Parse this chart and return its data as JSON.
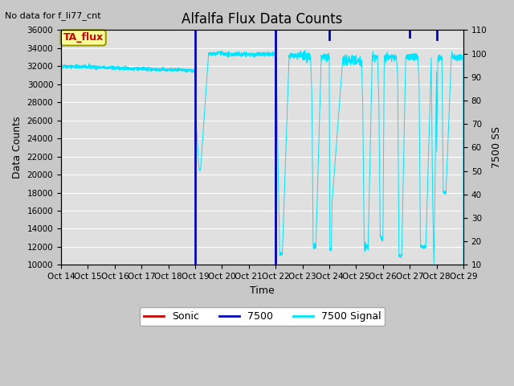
{
  "title": "Alfalfa Flux Data Counts",
  "topleft_text": "No data for f_li77_cnt",
  "legend_box_label": "TA_flux",
  "xlabel": "Time",
  "ylabel_left": "Data Counts",
  "ylabel_right": "7500 SS",
  "ylim_left": [
    10000,
    36000
  ],
  "ylim_right": [
    10,
    110
  ],
  "yticks_left": [
    10000,
    12000,
    14000,
    16000,
    18000,
    20000,
    22000,
    24000,
    26000,
    28000,
    30000,
    32000,
    34000,
    36000
  ],
  "yticks_right": [
    10,
    20,
    30,
    40,
    50,
    60,
    70,
    80,
    90,
    100,
    110
  ],
  "xtick_labels": [
    "Oct 14",
    "Oct 15",
    "Oct 16",
    "Oct 17",
    "Oct 18",
    "Oct 19",
    "Oct 20",
    "Oct 21",
    "Oct 22",
    "Oct 23",
    "Oct 24",
    "Oct 25",
    "Oct 26",
    "Oct 27",
    "Oct 28",
    "Oct 29"
  ],
  "fig_bg_color": "#c8c8c8",
  "plot_bg_color": "#e0e0e0",
  "cyan_color": "#00e5ff",
  "blue_color": "#0000bb",
  "red_color": "#cc0000",
  "title_fontsize": 12,
  "axis_fontsize": 9,
  "tick_fontsize": 7.5
}
